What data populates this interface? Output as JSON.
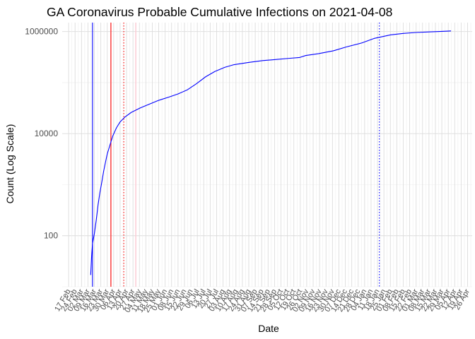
{
  "chart_data": {
    "type": "line",
    "title": "GA Coronavirus Probable Cumulative Infections on 2021-04-08",
    "xlabel": "Date",
    "ylabel": "Count (Log Scale)",
    "y_scale": "log10",
    "ylim": [
      10,
      1500000
    ],
    "xlim": [
      "2020-02-10",
      "2021-05-01"
    ],
    "y_ticks": [
      100,
      10000,
      1000000
    ],
    "grid": true,
    "series_color": "#0000ff",
    "x_tick_labels": [
      {
        "date": "2020-02-17",
        "label": "17 Feb"
      },
      {
        "date": "2020-02-24",
        "label": "24 Feb"
      },
      {
        "date": "2020-03-02",
        "label": "02 Mar"
      },
      {
        "date": "2020-03-09",
        "label": "09 Mar"
      },
      {
        "date": "2020-03-16",
        "label": "16 Mar"
      },
      {
        "date": "2020-03-23",
        "label": "23 Mar"
      },
      {
        "date": "2020-03-30",
        "label": "30 Mar"
      },
      {
        "date": "2020-04-06",
        "label": "06 Apr"
      },
      {
        "date": "2020-04-13",
        "label": "13 Apr"
      },
      {
        "date": "2020-04-20",
        "label": "20 Apr"
      },
      {
        "date": "2020-04-27",
        "label": "27 Apr"
      },
      {
        "date": "2020-05-04",
        "label": "04 May"
      },
      {
        "date": "2020-05-11",
        "label": "11 May"
      },
      {
        "date": "2020-05-18",
        "label": "18 May"
      },
      {
        "date": "2020-05-25",
        "label": "25 May"
      },
      {
        "date": "2020-06-01",
        "label": "01 Jun"
      },
      {
        "date": "2020-06-08",
        "label": "08 Jun"
      },
      {
        "date": "2020-06-15",
        "label": "15 Jun"
      },
      {
        "date": "2020-06-22",
        "label": "22 Jun"
      },
      {
        "date": "2020-06-29",
        "label": "29 Jun"
      },
      {
        "date": "2020-07-06",
        "label": "06 Jul"
      },
      {
        "date": "2020-07-13",
        "label": "13 Jul"
      },
      {
        "date": "2020-07-20",
        "label": "20 Jul"
      },
      {
        "date": "2020-07-27",
        "label": "27 Jul"
      },
      {
        "date": "2020-08-03",
        "label": "03 Aug"
      },
      {
        "date": "2020-08-10",
        "label": "10 Aug"
      },
      {
        "date": "2020-08-17",
        "label": "17 Aug"
      },
      {
        "date": "2020-08-24",
        "label": "24 Aug"
      },
      {
        "date": "2020-08-31",
        "label": "31 Aug"
      },
      {
        "date": "2020-09-07",
        "label": "07 Sep"
      },
      {
        "date": "2020-09-14",
        "label": "14 Sep"
      },
      {
        "date": "2020-09-21",
        "label": "21 Sep"
      },
      {
        "date": "2020-09-28",
        "label": "28 Sep"
      },
      {
        "date": "2020-10-05",
        "label": "05 Oct"
      },
      {
        "date": "2020-10-12",
        "label": "12 Oct"
      },
      {
        "date": "2020-10-19",
        "label": "19 Oct"
      },
      {
        "date": "2020-10-26",
        "label": "26 Oct"
      },
      {
        "date": "2020-11-02",
        "label": "02 Nov"
      },
      {
        "date": "2020-11-09",
        "label": "09 Nov"
      },
      {
        "date": "2020-11-16",
        "label": "16 Nov"
      },
      {
        "date": "2020-11-23",
        "label": "23 Nov"
      },
      {
        "date": "2020-11-30",
        "label": "30 Nov"
      },
      {
        "date": "2020-12-07",
        "label": "07 Dec"
      },
      {
        "date": "2020-12-14",
        "label": "14 Dec"
      },
      {
        "date": "2020-12-21",
        "label": "21 Dec"
      },
      {
        "date": "2020-12-28",
        "label": "28 Dec"
      },
      {
        "date": "2021-01-04",
        "label": "04 Jan"
      },
      {
        "date": "2021-01-11",
        "label": "11 Jan"
      },
      {
        "date": "2021-01-18",
        "label": "18 Jan"
      },
      {
        "date": "2021-01-25",
        "label": "25 Jan"
      },
      {
        "date": "2021-02-01",
        "label": "01 Feb"
      },
      {
        "date": "2021-02-08",
        "label": "08 Feb"
      },
      {
        "date": "2021-02-15",
        "label": "15 Feb"
      },
      {
        "date": "2021-02-22",
        "label": "22 Feb"
      },
      {
        "date": "2021-03-01",
        "label": "01 Mar"
      },
      {
        "date": "2021-03-08",
        "label": "08 Mar"
      },
      {
        "date": "2021-03-15",
        "label": "15 Mar"
      },
      {
        "date": "2021-03-22",
        "label": "22 Mar"
      },
      {
        "date": "2021-03-29",
        "label": "29 Mar"
      },
      {
        "date": "2021-04-05",
        "label": "05 Apr"
      },
      {
        "date": "2021-04-12",
        "label": "12 Apr"
      },
      {
        "date": "2021-04-19",
        "label": "19 Apr"
      },
      {
        "date": "2021-04-26",
        "label": "26 Apr"
      }
    ],
    "reference_lines": [
      {
        "date": "2020-03-14",
        "color": "#0000ff",
        "style": "solid"
      },
      {
        "date": "2020-04-03",
        "color": "#ff0000",
        "style": "solid"
      },
      {
        "date": "2020-04-17",
        "color": "#ff0000",
        "style": "dotted"
      },
      {
        "date": "2020-04-30",
        "color": "#ffc0cb",
        "style": "solid"
      },
      {
        "date": "2021-01-20",
        "color": "#0000ff",
        "style": "dotted"
      }
    ],
    "series": [
      {
        "points": [
          [
            "2020-03-12",
            17
          ],
          [
            "2020-03-13",
            40
          ],
          [
            "2020-03-14",
            70
          ],
          [
            "2020-03-16",
            110
          ],
          [
            "2020-03-18",
            200
          ],
          [
            "2020-03-20",
            400
          ],
          [
            "2020-03-22",
            700
          ],
          [
            "2020-03-24",
            1100
          ],
          [
            "2020-03-26",
            1800
          ],
          [
            "2020-03-28",
            2700
          ],
          [
            "2020-03-30",
            4000
          ],
          [
            "2020-04-02",
            6000
          ],
          [
            "2020-04-05",
            9000
          ],
          [
            "2020-04-09",
            13000
          ],
          [
            "2020-04-13",
            17000
          ],
          [
            "2020-04-18",
            21000
          ],
          [
            "2020-04-25",
            26000
          ],
          [
            "2020-05-05",
            32000
          ],
          [
            "2020-05-15",
            38000
          ],
          [
            "2020-05-25",
            45000
          ],
          [
            "2020-06-05",
            52000
          ],
          [
            "2020-06-15",
            60000
          ],
          [
            "2020-06-25",
            72000
          ],
          [
            "2020-07-05",
            95000
          ],
          [
            "2020-07-15",
            130000
          ],
          [
            "2020-07-25",
            165000
          ],
          [
            "2020-08-05",
            200000
          ],
          [
            "2020-08-15",
            225000
          ],
          [
            "2020-09-01",
            250000
          ],
          [
            "2020-09-15",
            270000
          ],
          [
            "2020-10-01",
            285000
          ],
          [
            "2020-10-15",
            300000
          ],
          [
            "2020-10-25",
            310000
          ],
          [
            "2020-11-01",
            340000
          ],
          [
            "2020-11-15",
            370000
          ],
          [
            "2020-12-01",
            420000
          ],
          [
            "2020-12-15",
            500000
          ],
          [
            "2021-01-01",
            600000
          ],
          [
            "2021-01-15",
            740000
          ],
          [
            "2021-02-01",
            860000
          ],
          [
            "2021-02-15",
            920000
          ],
          [
            "2021-03-01",
            960000
          ],
          [
            "2021-03-15",
            985000
          ],
          [
            "2021-03-29",
            1010000
          ],
          [
            "2021-04-08",
            1030000
          ]
        ]
      }
    ]
  }
}
